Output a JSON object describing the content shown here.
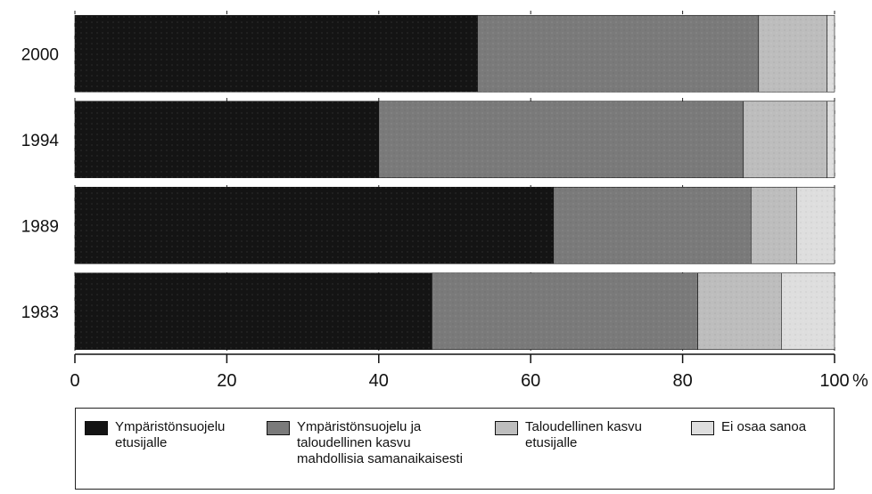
{
  "chart_data": {
    "type": "bar",
    "orientation": "horizontal",
    "stacked": true,
    "categories": [
      "2000",
      "1994",
      "1989",
      "1983"
    ],
    "series": [
      {
        "name": "Ympäristönsuojelu\netusijalle",
        "values": [
          53,
          40,
          63,
          47
        ],
        "color": "#141414"
      },
      {
        "name": "Ympäristönsuojelu ja\ntaloudellinen kasvu\nmahdollisia samanaikaisesti",
        "values": [
          37,
          48,
          26,
          35
        ],
        "color": "#7a7a7a"
      },
      {
        "name": "Taloudellinen kasvu\netusijalle",
        "values": [
          9,
          11,
          6,
          11
        ],
        "color": "#bdbdbd"
      },
      {
        "name": "Ei osaa sanoa",
        "values": [
          1,
          1,
          5,
          7
        ],
        "color": "#dedede"
      }
    ],
    "xlim": [
      0,
      100
    ],
    "xticks": [
      "0",
      "20",
      "40",
      "60",
      "80",
      "100"
    ],
    "xunit": "%",
    "grid": true,
    "legend_position": "bottom"
  }
}
